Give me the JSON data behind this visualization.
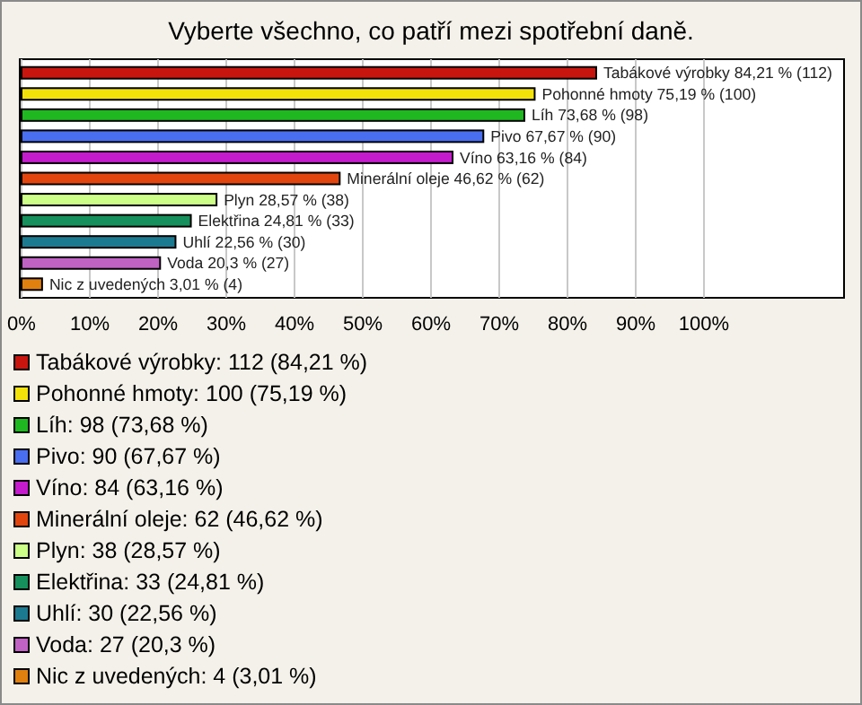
{
  "chart_data": {
    "type": "bar",
    "orientation": "horizontal",
    "title": "Vyberte všechno, co patří mezi spotřební daně.",
    "categories": [
      null,
      null,
      null,
      null,
      null,
      null,
      null,
      null,
      null,
      null,
      null
    ],
    "values": [
      84.21,
      75.19,
      73.68,
      67.67,
      63.16,
      46.62,
      28.57,
      24.81,
      22.56,
      20.3,
      3.01
    ],
    "colors": [
      "#c8160e",
      "#f2e20a",
      "#20b820",
      "#4a6ef0",
      "#c41ccc",
      "#e2460e",
      "#ccff88",
      "#16905c",
      "#1c7a90",
      "#c062c4",
      "#e0800e"
    ],
    "value_labels": [
      "Tabákové výrobky 84,21 % (112)",
      "Pohonné hmoty 75,19 % (100)",
      "Líh 73,68 % (98)",
      "Pivo 67,67 % (90)",
      "Víno 63,16 % (84)",
      "Minerální oleje 46,62 % (62)",
      "Plyn 28,57 % (38)",
      "Elektřina 24,81 % (33)",
      "Uhlí 22,56 % (30)",
      "Voda 20,3 % (27)",
      "Nic z uvedených 3,01 % (4)"
    ],
    "annotations": [
      "Tabákové výrobky: 112 (84,21 %)",
      "Pohonné hmoty: 100 (75,19 %)",
      "Líh: 98 (73,68 %)",
      "Pivo: 90 (67,67 %)",
      "Víno: 84 (63,16 %)",
      "Minerální oleje: 62 (46,62 %)",
      "Plyn: 38 (28,57 %)",
      "Elektřina: 33 (24,81 %)",
      "Uhlí: 30 (22,56 %)",
      "Voda: 27 (20,3 %)",
      "Nic z uvedených: 4 (3,01 %)"
    ],
    "xlim": [
      0,
      120
    ],
    "xticks": [
      {
        "value": 0,
        "label": "0%"
      },
      {
        "value": 10,
        "label": "10%"
      },
      {
        "value": 20,
        "label": "20%"
      },
      {
        "value": 30,
        "label": "30%"
      },
      {
        "value": 40,
        "label": "40%"
      },
      {
        "value": 50,
        "label": "50%"
      },
      {
        "value": 60,
        "label": "60%"
      },
      {
        "value": 70,
        "label": "70%"
      },
      {
        "value": 80,
        "label": "80%"
      },
      {
        "value": 90,
        "label": "90%"
      },
      {
        "value": 100,
        "label": "100%"
      }
    ],
    "grid": "x"
  }
}
